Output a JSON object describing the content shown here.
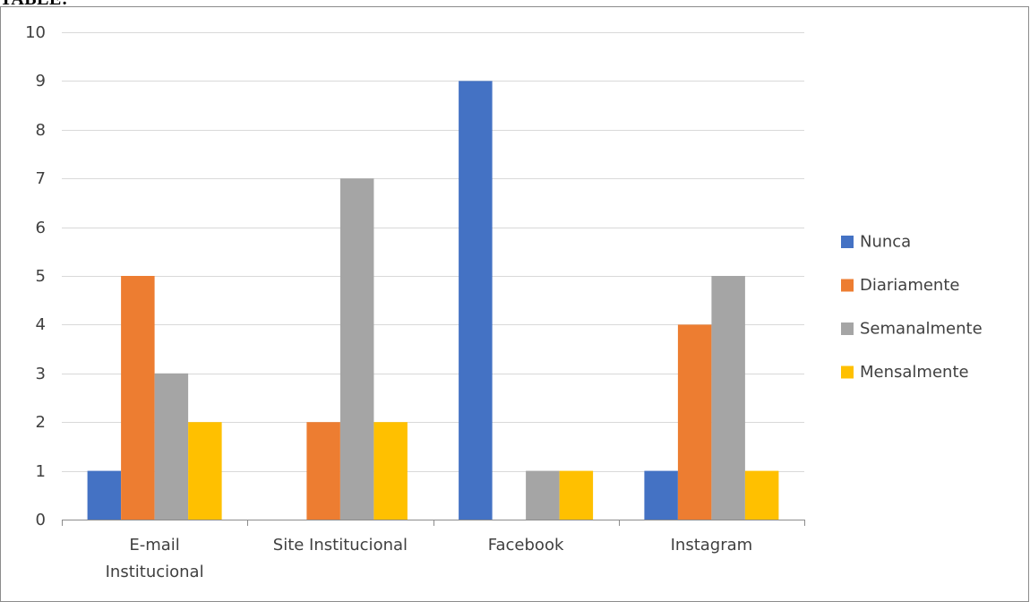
{
  "heading": "TABLE:",
  "colors": {
    "gridline": "#d9d9d9",
    "axis": "#8c8c8c",
    "text": "#404040",
    "frame": "#8c8c8c"
  },
  "chart_data": {
    "type": "bar",
    "categories": [
      [
        "E-mail",
        "Institucional"
      ],
      [
        "Site Institucional"
      ],
      [
        "Facebook"
      ],
      [
        "Instagram"
      ]
    ],
    "series": [
      {
        "name": "Nunca",
        "color": "#4472c4",
        "values": [
          1,
          0,
          9,
          1
        ]
      },
      {
        "name": "Diariamente",
        "color": "#ed7d31",
        "values": [
          5,
          2,
          0,
          4
        ]
      },
      {
        "name": "Semanalmente",
        "color": "#a5a5a5",
        "values": [
          3,
          7,
          1,
          5
        ]
      },
      {
        "name": "Mensalmente",
        "color": "#ffc000",
        "values": [
          2,
          2,
          1,
          1
        ]
      }
    ],
    "ylim": [
      0,
      10
    ],
    "yticks": [
      0,
      1,
      2,
      3,
      4,
      5,
      6,
      7,
      8,
      9,
      10
    ],
    "grid": true,
    "legend": "right",
    "title": "",
    "xlabel": "",
    "ylabel": ""
  }
}
